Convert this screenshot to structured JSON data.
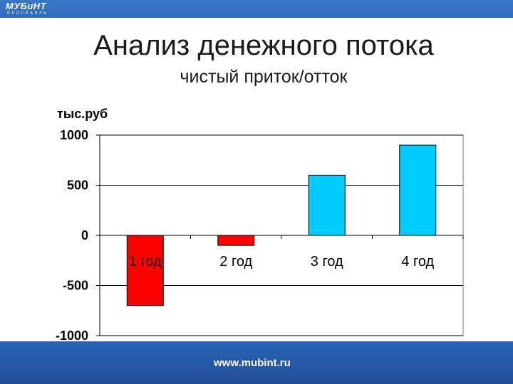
{
  "header": {
    "logo_main": "МУБиНТ",
    "logo_sub": "ЯРОСЛАВЛЬ"
  },
  "slide": {
    "title": "Анализ денежного потока",
    "subtitle": "чистый приток/отток"
  },
  "footer": {
    "url": "www.mubint.ru"
  },
  "colors": {
    "header_band": "#3a78c6",
    "footer_band": "#2a62b4",
    "negative_bar": "#ff0000",
    "positive_bar": "#00ccff"
  },
  "chart_data": {
    "type": "bar",
    "title": "",
    "xlabel": "",
    "ylabel": "тыс.руб",
    "categories": [
      "1 год",
      "2 год",
      "3 год",
      "4 год"
    ],
    "values": [
      -700,
      -100,
      600,
      900
    ],
    "ylim": [
      -1000,
      1000
    ],
    "yticks": [
      1000,
      500,
      0,
      -500,
      -1000
    ],
    "grid": true,
    "legend": "none"
  }
}
